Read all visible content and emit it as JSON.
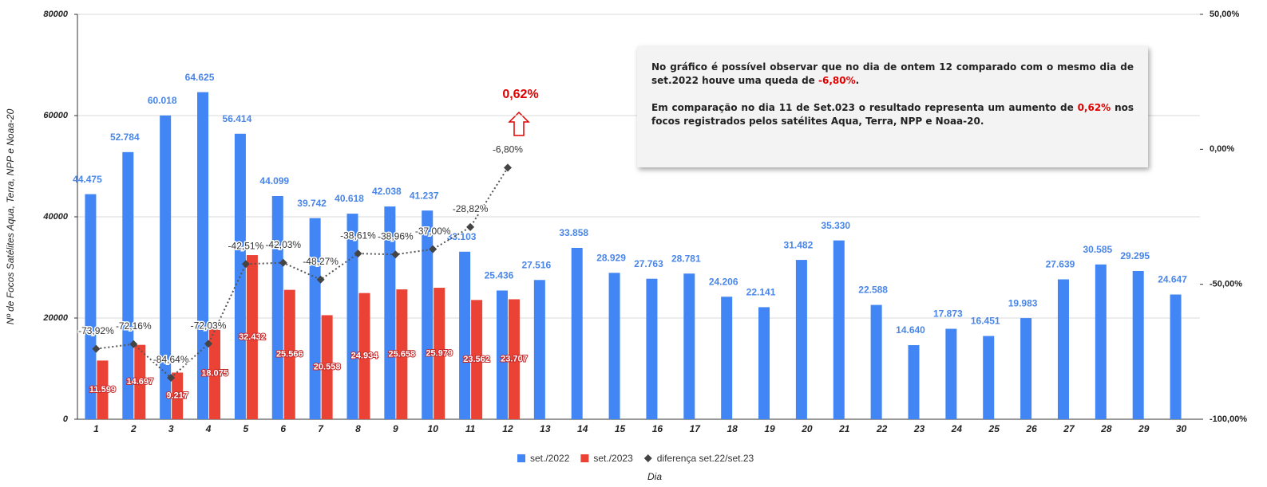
{
  "chart_data": {
    "type": "bar",
    "y_label": "Nº de Focos Satélites Aqua, Terra, NPP e Noaa-20",
    "x_label": "Dia",
    "categories": [
      "1",
      "2",
      "3",
      "4",
      "5",
      "6",
      "7",
      "8",
      "9",
      "10",
      "11",
      "12",
      "13",
      "14",
      "15",
      "16",
      "17",
      "18",
      "19",
      "20",
      "21",
      "22",
      "23",
      "24",
      "25",
      "26",
      "27",
      "28",
      "29",
      "30"
    ],
    "ylim": [
      0,
      80000
    ],
    "yticks": [
      0,
      20000,
      40000,
      60000,
      80000
    ],
    "y2lim": [
      -100,
      50
    ],
    "y2ticks": [
      {
        "value": -100,
        "label": "-100,00%"
      },
      {
        "value": -50,
        "label": "-50,00%"
      },
      {
        "value": 0,
        "label": "0,00%"
      },
      {
        "value": 50,
        "label": "50,00%"
      }
    ],
    "grid": true,
    "series": [
      {
        "name": "set./2022",
        "color": "#4285f4",
        "values": [
          44475,
          52784,
          60018,
          64625,
          56414,
          44099,
          39742,
          40618,
          42038,
          41237,
          33103,
          25436,
          27516,
          33858,
          28929,
          27763,
          28781,
          24206,
          22141,
          31482,
          35330,
          22588,
          14640,
          17873,
          16451,
          19983,
          27639,
          30585,
          29295,
          24647
        ],
        "value_labels": [
          "44.475",
          "52.784",
          "60.018",
          "64.625",
          "56.414",
          "44.099",
          "39.742",
          "40.618",
          "42.038",
          "41.237",
          "33.103",
          "25.436",
          "27.516",
          "33.858",
          "28.929",
          "27.763",
          "28.781",
          "24.206",
          "22.141",
          "31.482",
          "35.330",
          "22.588",
          "14.640",
          "17.873",
          "16.451",
          "19.983",
          "27.639",
          "30.585",
          "29.295",
          "24.647"
        ]
      },
      {
        "name": "set./2023",
        "color": "#ea4335",
        "values": [
          11599,
          14697,
          9217,
          18075,
          32432,
          25566,
          20558,
          24934,
          25658,
          25979,
          23562,
          23707,
          null,
          null,
          null,
          null,
          null,
          null,
          null,
          null,
          null,
          null,
          null,
          null,
          null,
          null,
          null,
          null,
          null,
          null
        ],
        "value_labels": [
          "11.599",
          "14.697",
          "9.217",
          "18.075",
          "32.432",
          "25.566",
          "20.558",
          "24.934",
          "25.658",
          "25.979",
          "23.562",
          "23.707",
          null,
          null,
          null,
          null,
          null,
          null,
          null,
          null,
          null,
          null,
          null,
          null,
          null,
          null,
          null,
          null,
          null,
          null
        ]
      },
      {
        "name": "diferença set.22/set.23",
        "color": "#444444",
        "type": "line",
        "axis": "y2",
        "values": [
          -73.92,
          -72.16,
          -84.64,
          -72.03,
          -42.51,
          -42.03,
          -48.27,
          -38.61,
          -38.96,
          -37.0,
          -28.82,
          -6.8,
          null,
          null,
          null,
          null,
          null,
          null,
          null,
          null,
          null,
          null,
          null,
          null,
          null,
          null,
          null,
          null,
          null,
          null
        ],
        "value_labels": [
          "-73,92%",
          "-72,16%",
          "-84,64%",
          "-72,03%",
          "-42,51%",
          "-42,03%",
          "-48,27%",
          "-38,61%",
          "-38,96%",
          "-37,00%",
          "-28,82%",
          "-6,80%",
          null,
          null,
          null,
          null,
          null,
          null,
          null,
          null,
          null,
          null,
          null,
          null,
          null,
          null,
          null,
          null,
          null,
          null
        ]
      }
    ],
    "callout": "0,62%",
    "annotation": {
      "p1": [
        "No gráfico é possível observar que no dia de ontem 12 comparado com o mesmo dia de set.2022  houve uma queda de ",
        "-6,80%",
        "."
      ],
      "p2": [
        "Em comparação no dia 11 de Set.023 o resultado representa um aumento de ",
        "0,62%",
        " nos focos registrados pelos satélites Aqua, Terra, NPP e Noaa-20."
      ]
    }
  }
}
